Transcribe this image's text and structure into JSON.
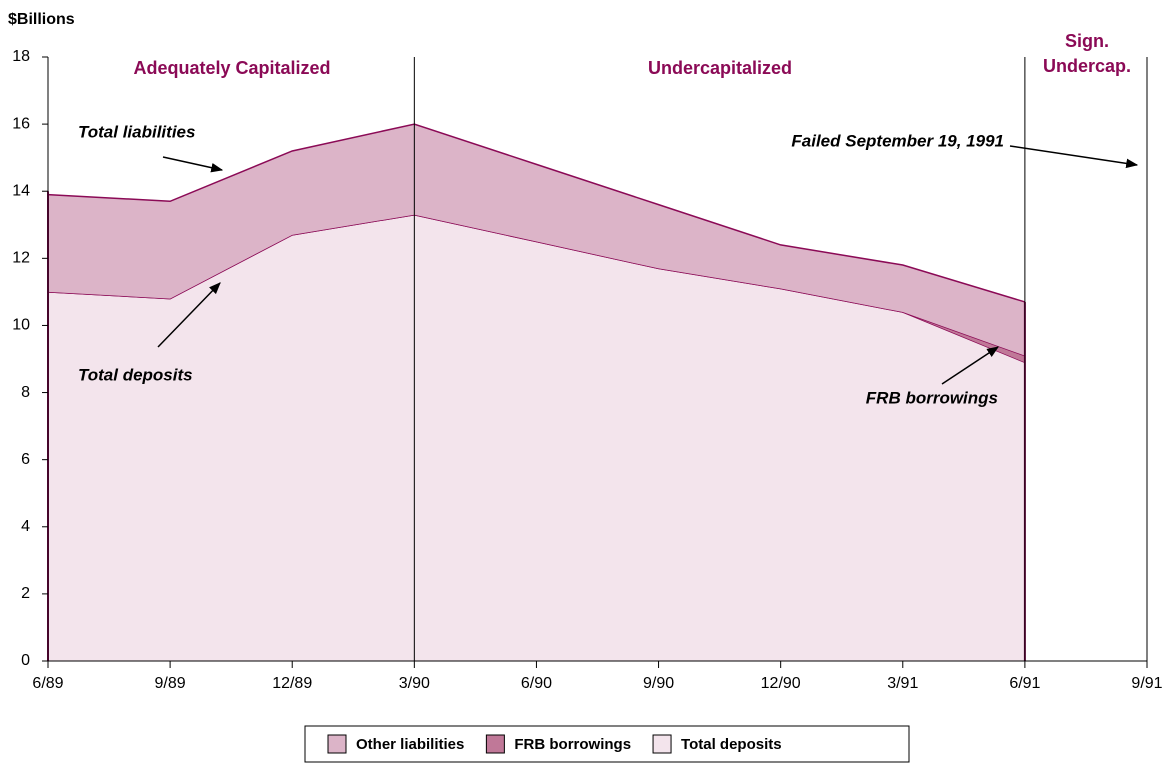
{
  "chart_data": {
    "type": "area",
    "stacked": true,
    "y_label": "$Billions",
    "categories": [
      "6/89",
      "9/89",
      "12/89",
      "3/90",
      "6/90",
      "9/90",
      "12/90",
      "3/91",
      "6/91",
      "9/91"
    ],
    "series": [
      {
        "name": "Total deposits",
        "color": "#f3e4ec",
        "values": [
          11.0,
          10.8,
          12.7,
          13.3,
          12.5,
          11.7,
          11.1,
          10.4,
          8.9,
          null
        ]
      },
      {
        "name": "FRB borrowings",
        "color": "#c07898",
        "values": [
          0,
          0,
          0,
          0,
          0,
          0,
          0,
          0,
          0.2,
          null
        ]
      },
      {
        "name": "Other liabilities",
        "color": "#dcb4c8",
        "values": [
          2.9,
          2.9,
          2.5,
          2.7,
          2.3,
          1.9,
          1.3,
          1.4,
          1.6,
          null
        ]
      }
    ],
    "legend_order": [
      2,
      1,
      0
    ],
    "line_color": "#8b0a56",
    "ylim": [
      0,
      18
    ],
    "yticks": [
      0,
      2,
      4,
      6,
      8,
      10,
      12,
      14,
      16,
      18
    ],
    "regions": [
      "Adequately Capitalized",
      "Undercapitalized",
      "Sign.",
      "Undercap."
    ],
    "annotations": [
      "Total liabilities",
      "Total deposits",
      "FRB borrowings",
      "Failed September 19, 1991"
    ]
  }
}
